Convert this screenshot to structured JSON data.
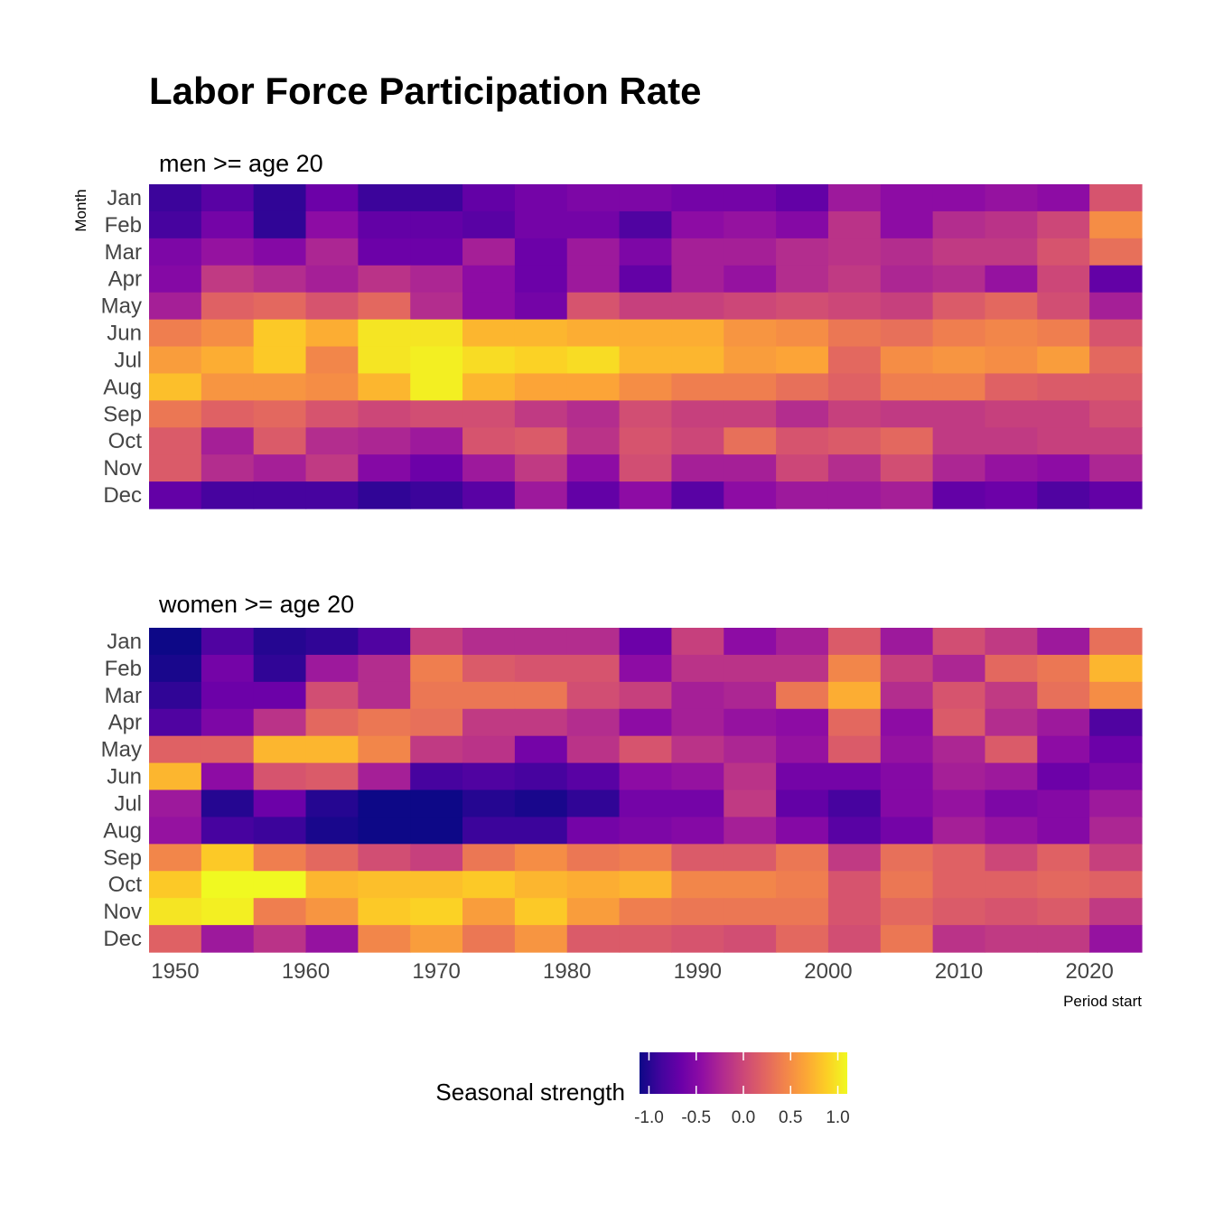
{
  "chart_data": {
    "type": "heatmap",
    "title": "Labor Force Participation Rate",
    "xlabel": "Period start",
    "ylabel": "Month",
    "x_ticks": [
      1950,
      1960,
      1970,
      1980,
      1990,
      2000,
      2010,
      2020
    ],
    "months": [
      "Jan",
      "Feb",
      "Mar",
      "Apr",
      "May",
      "Jun",
      "Jul",
      "Aug",
      "Sep",
      "Oct",
      "Nov",
      "Dec"
    ],
    "period_starts": [
      1948,
      1952,
      1956,
      1960,
      1964,
      1968,
      1972,
      1976,
      1980,
      1984,
      1988,
      1992,
      1996,
      2000,
      2004,
      2008,
      2012,
      2016,
      2020
    ],
    "colorbar": {
      "title": "Seasonal strength",
      "range": [
        -1.1,
        1.1
      ],
      "ticks": [
        "-1.0",
        "-0.5",
        "0.0",
        "0.5",
        "1.0"
      ],
      "tick_values": [
        -1.0,
        -0.5,
        0.0,
        0.5,
        1.0
      ],
      "colormap": "plasma"
    },
    "panels": [
      {
        "label": "men >= age 20",
        "values": [
          [
            -0.9,
            -0.75,
            -0.95,
            -0.65,
            -0.9,
            -0.9,
            -0.7,
            -0.6,
            -0.55,
            -0.55,
            -0.6,
            -0.6,
            -0.7,
            -0.35,
            -0.45,
            -0.45,
            -0.4,
            -0.45,
            0.1
          ],
          [
            -0.85,
            -0.6,
            -0.95,
            -0.45,
            -0.7,
            -0.7,
            -0.75,
            -0.6,
            -0.6,
            -0.8,
            -0.45,
            -0.4,
            -0.5,
            -0.15,
            -0.45,
            -0.2,
            -0.15,
            0.0,
            0.5
          ],
          [
            -0.55,
            -0.4,
            -0.5,
            -0.25,
            -0.65,
            -0.65,
            -0.3,
            -0.65,
            -0.35,
            -0.55,
            -0.3,
            -0.3,
            -0.2,
            -0.15,
            -0.2,
            -0.1,
            -0.1,
            0.1,
            0.3
          ],
          [
            -0.5,
            -0.1,
            -0.2,
            -0.3,
            -0.15,
            -0.25,
            -0.45,
            -0.65,
            -0.35,
            -0.7,
            -0.3,
            -0.4,
            -0.2,
            -0.1,
            -0.25,
            -0.2,
            -0.4,
            0.0,
            -0.7
          ],
          [
            -0.3,
            0.2,
            0.25,
            0.1,
            0.25,
            -0.2,
            -0.45,
            -0.6,
            0.1,
            -0.05,
            -0.05,
            0.0,
            0.05,
            0.0,
            -0.05,
            0.15,
            0.25,
            0.05,
            -0.3
          ],
          [
            0.4,
            0.5,
            0.85,
            0.7,
            1.0,
            1.0,
            0.75,
            0.75,
            0.7,
            0.7,
            0.7,
            0.55,
            0.5,
            0.35,
            0.3,
            0.4,
            0.45,
            0.4,
            0.1
          ],
          [
            0.6,
            0.7,
            0.85,
            0.45,
            1.0,
            1.05,
            0.95,
            0.9,
            0.95,
            0.75,
            0.75,
            0.6,
            0.65,
            0.25,
            0.5,
            0.55,
            0.5,
            0.6,
            0.25
          ],
          [
            0.8,
            0.55,
            0.55,
            0.5,
            0.75,
            1.05,
            0.75,
            0.65,
            0.65,
            0.5,
            0.4,
            0.4,
            0.3,
            0.2,
            0.4,
            0.4,
            0.2,
            0.15,
            0.15
          ],
          [
            0.35,
            0.2,
            0.25,
            0.1,
            0.0,
            0.05,
            0.05,
            -0.1,
            -0.2,
            0.05,
            -0.05,
            -0.05,
            -0.2,
            -0.05,
            -0.1,
            -0.1,
            -0.05,
            -0.05,
            0.05
          ],
          [
            0.15,
            -0.3,
            0.15,
            -0.2,
            -0.25,
            -0.35,
            0.1,
            0.15,
            -0.15,
            0.1,
            0.0,
            0.3,
            0.1,
            0.15,
            0.25,
            -0.1,
            -0.1,
            -0.05,
            -0.05
          ],
          [
            0.15,
            -0.2,
            -0.3,
            -0.1,
            -0.5,
            -0.65,
            -0.35,
            -0.1,
            -0.45,
            0.05,
            -0.3,
            -0.3,
            0.0,
            -0.2,
            0.05,
            -0.25,
            -0.4,
            -0.45,
            -0.25
          ],
          [
            -0.7,
            -0.85,
            -0.85,
            -0.85,
            -0.95,
            -0.9,
            -0.75,
            -0.35,
            -0.7,
            -0.45,
            -0.75,
            -0.45,
            -0.35,
            -0.35,
            -0.3,
            -0.7,
            -0.65,
            -0.8,
            -0.7
          ]
        ]
      },
      {
        "label": "women >= age 20",
        "values": [
          [
            -1.15,
            -0.8,
            -1.0,
            -0.95,
            -0.8,
            -0.05,
            -0.2,
            -0.2,
            -0.2,
            -0.65,
            -0.05,
            -0.45,
            -0.3,
            0.15,
            -0.35,
            0.05,
            -0.1,
            -0.35,
            0.3
          ],
          [
            -1.05,
            -0.6,
            -0.95,
            -0.35,
            -0.2,
            0.4,
            0.15,
            0.1,
            0.1,
            -0.45,
            -0.15,
            -0.15,
            -0.15,
            0.45,
            -0.05,
            -0.25,
            0.25,
            0.35,
            0.75
          ],
          [
            -0.95,
            -0.65,
            -0.65,
            0.05,
            -0.2,
            0.35,
            0.35,
            0.35,
            0.05,
            -0.05,
            -0.3,
            -0.25,
            0.35,
            0.7,
            -0.2,
            0.1,
            -0.1,
            0.3,
            0.5
          ],
          [
            -0.8,
            -0.55,
            -0.15,
            0.25,
            0.35,
            0.3,
            -0.1,
            -0.1,
            -0.2,
            -0.45,
            -0.3,
            -0.4,
            -0.45,
            0.25,
            -0.45,
            0.15,
            -0.2,
            -0.35,
            -0.8
          ],
          [
            0.2,
            0.2,
            0.75,
            0.75,
            0.45,
            -0.1,
            -0.15,
            -0.6,
            -0.15,
            0.1,
            -0.15,
            -0.25,
            -0.4,
            0.15,
            -0.4,
            -0.25,
            0.15,
            -0.45,
            -0.65
          ],
          [
            0.75,
            -0.45,
            0.1,
            0.15,
            -0.3,
            -0.85,
            -0.8,
            -0.85,
            -0.75,
            -0.45,
            -0.4,
            -0.15,
            -0.6,
            -0.6,
            -0.5,
            -0.3,
            -0.35,
            -0.65,
            -0.55
          ],
          [
            -0.35,
            -1.0,
            -0.65,
            -1.0,
            -1.15,
            -1.25,
            -1.0,
            -1.05,
            -0.95,
            -0.6,
            -0.6,
            -0.1,
            -0.7,
            -0.85,
            -0.5,
            -0.4,
            -0.55,
            -0.5,
            -0.35
          ],
          [
            -0.4,
            -0.85,
            -0.9,
            -1.05,
            -1.15,
            -1.25,
            -0.9,
            -0.9,
            -0.6,
            -0.55,
            -0.5,
            -0.3,
            -0.5,
            -0.75,
            -0.6,
            -0.3,
            -0.4,
            -0.5,
            -0.25
          ],
          [
            0.45,
            0.85,
            0.4,
            0.25,
            0.05,
            -0.05,
            0.35,
            0.5,
            0.35,
            0.4,
            0.15,
            0.15,
            0.35,
            -0.1,
            0.3,
            0.2,
            0.0,
            0.2,
            -0.05
          ],
          [
            0.85,
            1.15,
            1.1,
            0.75,
            0.8,
            0.8,
            0.85,
            0.75,
            0.7,
            0.75,
            0.45,
            0.45,
            0.4,
            0.1,
            0.35,
            0.2,
            0.2,
            0.25,
            0.2
          ],
          [
            1.0,
            1.05,
            0.4,
            0.55,
            0.85,
            0.9,
            0.6,
            0.85,
            0.6,
            0.4,
            0.35,
            0.35,
            0.35,
            0.1,
            0.25,
            0.15,
            0.1,
            0.15,
            -0.1
          ],
          [
            0.2,
            -0.35,
            -0.15,
            -0.4,
            0.45,
            0.6,
            0.35,
            0.55,
            0.15,
            0.15,
            0.1,
            0.05,
            0.25,
            0.05,
            0.35,
            -0.15,
            -0.1,
            -0.1,
            -0.4
          ]
        ]
      }
    ]
  }
}
